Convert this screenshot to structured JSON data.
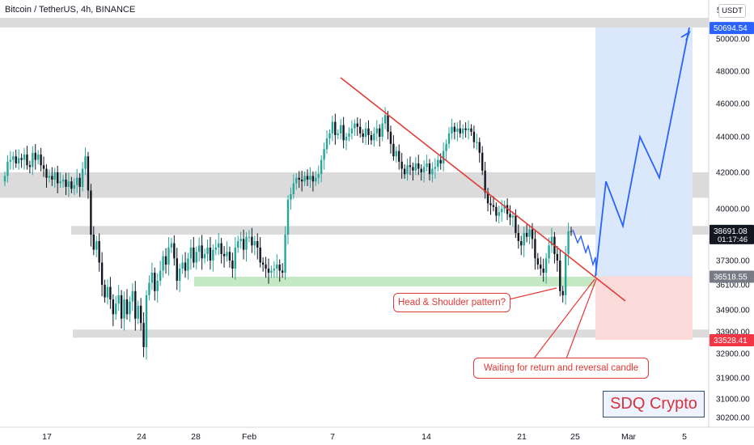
{
  "header": {
    "symbol_title": "Bitcoin / TetherUS, 4h, BINANCE",
    "currency": "USDT"
  },
  "chart_data": {
    "type": "candlestick",
    "title": "Bitcoin / TetherUS, 4h, BINANCE",
    "x_ticks": [
      "17",
      "24",
      "28",
      "Feb",
      "7",
      "14",
      "21",
      "25",
      "Mar",
      "5"
    ],
    "y_ticks": [
      30200,
      31000,
      31900,
      32900,
      33900,
      34900,
      36100,
      37300,
      38500,
      40000,
      42000,
      44000,
      46000,
      48000,
      50000
    ],
    "y_tick_labels": [
      "30200.00",
      "31000.00",
      "31900.00",
      "32900.00",
      "33900.00",
      "34900.00",
      "36100.00",
      "37300.00",
      "38500.00",
      "40000.00",
      "42000.00",
      "44000.00",
      "46000.00",
      "48000.00",
      "50000.00"
    ],
    "price_tags": [
      {
        "label": "50694.54",
        "value": 50694.54,
        "color": "#2962ff"
      },
      {
        "label": "38691.08",
        "sub": "01:17:46",
        "value": 38691.08,
        "color": "#131722"
      },
      {
        "label": "36518.55",
        "value": 36518.55,
        "color": "#787b86"
      },
      {
        "label": "33528.41",
        "value": 33528.41,
        "color": "#f23645"
      }
    ],
    "top_partial_label": "5",
    "support_resistance_zones": [
      [
        50700,
        51300
      ],
      [
        40600,
        42000
      ],
      [
        38500,
        39000
      ],
      [
        33700,
        34000
      ]
    ],
    "green_zone": [
      36200,
      36500
    ],
    "trendline": {
      "from": {
        "x": "Feb 8",
        "price": 47300
      },
      "to": {
        "x": "Mar 1",
        "price": 35100
      }
    },
    "long_position": {
      "entry": 36518.55,
      "target": 50694.54,
      "stop": 33528.41
    },
    "projected_path": [
      36518.55,
      41500,
      39000,
      44000,
      41700,
      50694.54
    ],
    "close_price": 38691.08,
    "series": [
      {
        "close": [
          41800,
          42600,
          42700,
          42900,
          42500,
          42800,
          42700,
          43000,
          42400,
          42300,
          43100,
          42700,
          43000,
          42400,
          42200,
          41700,
          41800,
          41600,
          42000,
          41400,
          41500,
          41600,
          41200,
          41500,
          41100,
          41300,
          41700,
          41200,
          42200,
          42900,
          41000,
          38500,
          37800,
          38200,
          37200,
          36100,
          35500,
          36000,
          35400,
          34700,
          35200,
          35600,
          34500,
          35400,
          34700,
          35300,
          35800,
          34500,
          35100,
          34300,
          33200,
          35600,
          36200,
          36700,
          35800,
          36300,
          36800,
          37500,
          37100,
          37900,
          38100,
          37400,
          36300,
          36900,
          37200,
          36800,
          37400,
          37900,
          37200,
          37700,
          38000,
          37400,
          37600,
          37900,
          37300,
          37800,
          37900,
          38100,
          37600,
          37500,
          37700,
          37300,
          36900,
          37900,
          38200,
          38300,
          37800,
          38400,
          38400,
          38000,
          38200,
          37900,
          37200,
          37100,
          36900,
          36700,
          36800,
          36900,
          37100,
          36800,
          36700,
          38500,
          40500,
          40800,
          41400,
          41700,
          41600,
          41500,
          41800,
          41600,
          41800,
          41500,
          41700,
          41900,
          42700,
          43300,
          43900,
          44200,
          44900,
          44100,
          44200,
          44700,
          43800,
          44000,
          44200,
          44500,
          44800,
          44600,
          44200,
          44000,
          44500,
          44100,
          43800,
          44200,
          44500,
          44000,
          44800,
          45300,
          44300,
          43600,
          42900,
          43200,
          42600,
          42200,
          41900,
          42400,
          42300,
          42100,
          42500,
          42200,
          42000,
          42300,
          42500,
          41900,
          42200,
          42300,
          42700,
          42500,
          43200,
          43600,
          44200,
          44600,
          44300,
          44500,
          44200,
          44500,
          44400,
          44500,
          44300,
          43700,
          43700,
          43100,
          42100,
          40900,
          40300,
          40200,
          40100,
          39600,
          39800,
          40000,
          40200,
          39700,
          39500,
          39600,
          38600,
          38200,
          38000,
          38600,
          38400,
          38800,
          38300,
          37400,
          37100,
          36900,
          36700,
          37400,
          38000,
          38400,
          37600,
          37300,
          35800,
          35600,
          37600,
          38700,
          38691
        ]
      }
    ]
  }
}
